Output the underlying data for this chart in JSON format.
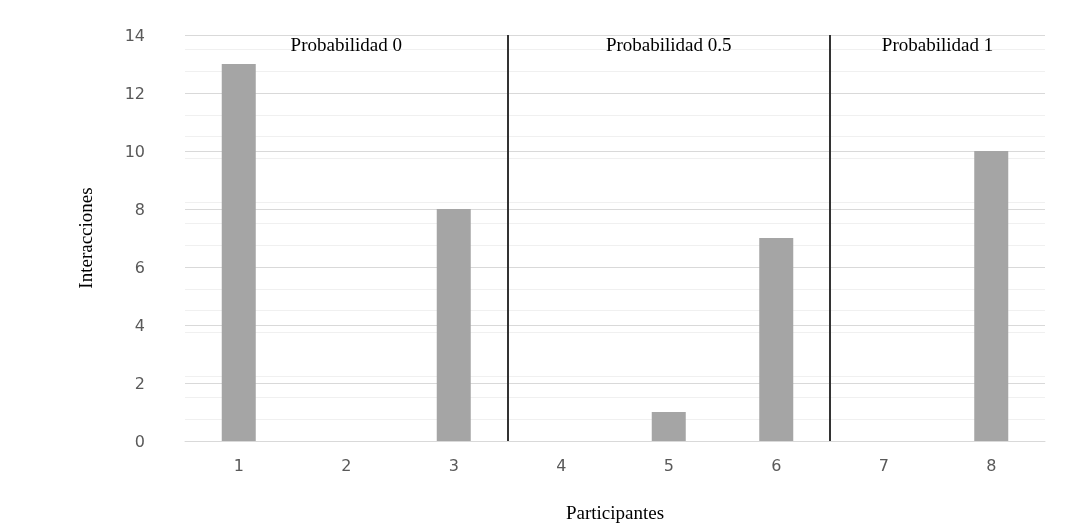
{
  "chart_data": {
    "type": "bar",
    "xlabel": "Participantes",
    "ylabel": "Interacciones",
    "x": [
      1,
      2,
      3,
      4,
      5,
      6,
      7,
      8
    ],
    "values": [
      13,
      0,
      8,
      0,
      1,
      7,
      0,
      10
    ],
    "color": "#a5a5a5",
    "xlim": [
      0.5,
      8.5
    ],
    "xticks": [
      1,
      2,
      3,
      4,
      5,
      6,
      7,
      8
    ],
    "ylim": [
      0,
      14
    ],
    "yticks": [
      0,
      2,
      4,
      6,
      8,
      10,
      12,
      14
    ],
    "grid": "y",
    "ref_lines": [
      {
        "axis": "x",
        "value": 3.5,
        "color": "#333333"
      },
      {
        "axis": "x",
        "value": 6.5,
        "color": "#333333"
      }
    ],
    "annotations": [
      "Probabilidad 0",
      "Probabilidad 0.5",
      "Probabilidad 1"
    ]
  }
}
